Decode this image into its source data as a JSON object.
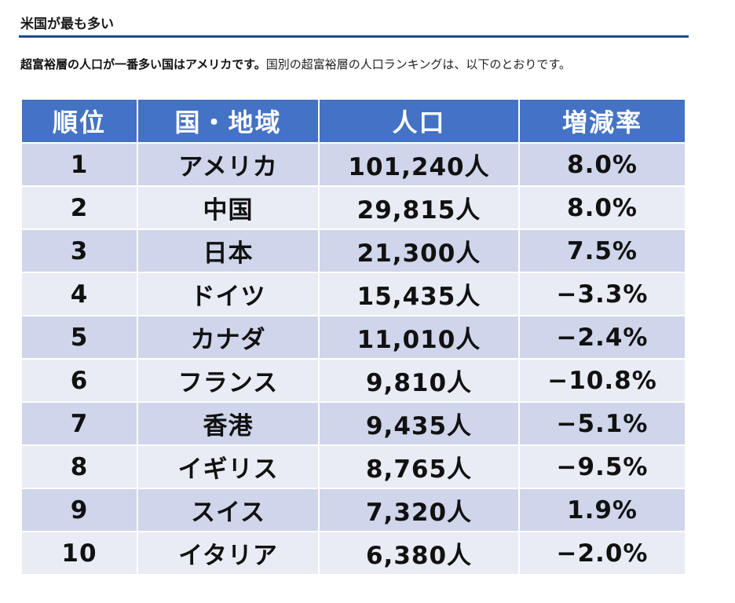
{
  "section": {
    "heading": "米国が最も多い"
  },
  "intro": {
    "bold": "超富裕層の人口が一番多い国はアメリカです。",
    "normal": "国別の超富裕層の人口ランキングは、以下のとおりです。"
  },
  "table": {
    "headers": [
      "順位",
      "国・地域",
      "人口",
      "増減率"
    ],
    "rows": [
      {
        "rank": "1",
        "country": "アメリカ",
        "population": "101,240人",
        "change": "8.0%"
      },
      {
        "rank": "2",
        "country": "中国",
        "population": "29,815人",
        "change": "8.0%"
      },
      {
        "rank": "3",
        "country": "日本",
        "population": "21,300人",
        "change": "7.5%"
      },
      {
        "rank": "4",
        "country": "ドイツ",
        "population": "15,435人",
        "change": "−3.3%"
      },
      {
        "rank": "5",
        "country": "カナダ",
        "population": "11,010人",
        "change": "−2.4%"
      },
      {
        "rank": "6",
        "country": "フランス",
        "population": "9,810人",
        "change": "−10.8%"
      },
      {
        "rank": "7",
        "country": "香港",
        "population": "9,435人",
        "change": "−5.1%"
      },
      {
        "rank": "8",
        "country": "イギリス",
        "population": "8,765人",
        "change": "−9.5%"
      },
      {
        "rank": "9",
        "country": "スイス",
        "population": "7,320人",
        "change": "1.9%"
      },
      {
        "rank": "10",
        "country": "イタリア",
        "population": "6,380人",
        "change": "−2.0%"
      }
    ],
    "colors": {
      "header_bg": "#4472c4",
      "row_odd_bg": "#cfd5ea",
      "row_even_bg": "#e9ebf5",
      "heading_rule": "#1f4a8c"
    }
  }
}
